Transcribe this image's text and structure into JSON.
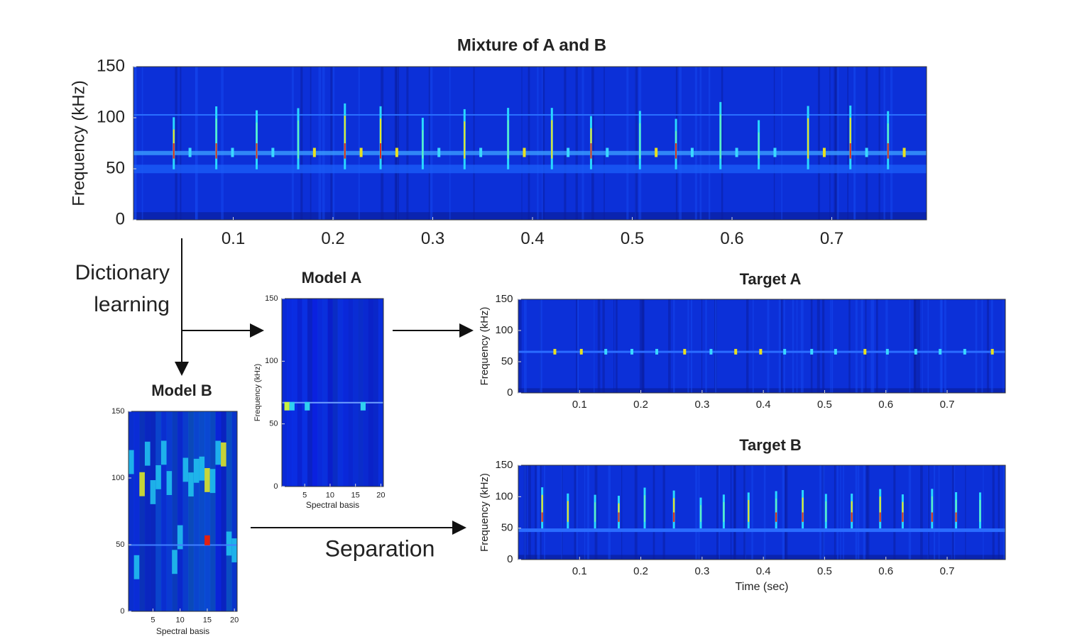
{
  "panels": [
    {
      "title": "Mixture of A and B",
      "ylabel": "Frequency (kHz)",
      "xlim": [
        0,
        0.795
      ],
      "ylim": [
        0,
        150
      ],
      "xticks": [
        0.1,
        0.2,
        0.3,
        0.4,
        0.5,
        0.6,
        0.7
      ],
      "yticks": [
        0,
        50,
        100,
        150
      ]
    },
    {
      "title": "Model A",
      "ylabel": "Frequency (kHz)",
      "xlabel": "Spectral basis",
      "xlim": [
        0.5,
        20.5
      ],
      "ylim": [
        0,
        150
      ],
      "xticks": [
        5,
        10,
        15,
        20
      ],
      "yticks": [
        0,
        50,
        100,
        150
      ]
    },
    {
      "title": "Model B",
      "xlabel": "Spectral basis",
      "xlim": [
        0.5,
        20.5
      ],
      "ylim": [
        0,
        150
      ],
      "xticks": [
        5,
        10,
        15,
        20
      ],
      "yticks": [
        0,
        50,
        100,
        150
      ]
    },
    {
      "title": "Target A",
      "ylabel": "Frequency (kHz)",
      "xlim": [
        0,
        0.795
      ],
      "ylim": [
        0,
        150
      ],
      "xticks": [
        0.1,
        0.2,
        0.3,
        0.4,
        0.5,
        0.6,
        0.7
      ],
      "yticks": [
        0,
        50,
        100,
        150
      ]
    },
    {
      "title": "Target B",
      "ylabel": "Frequency (kHz)",
      "xlabel": "Time (sec)",
      "xlim": [
        0,
        0.795
      ],
      "ylim": [
        0,
        150
      ],
      "xticks": [
        0.1,
        0.2,
        0.3,
        0.4,
        0.5,
        0.6,
        0.7
      ],
      "yticks": [
        0,
        50,
        100,
        150
      ]
    }
  ],
  "labels": {
    "dictionary_learning": [
      "Dictionary",
      "learning"
    ],
    "separation": "Separation"
  }
}
